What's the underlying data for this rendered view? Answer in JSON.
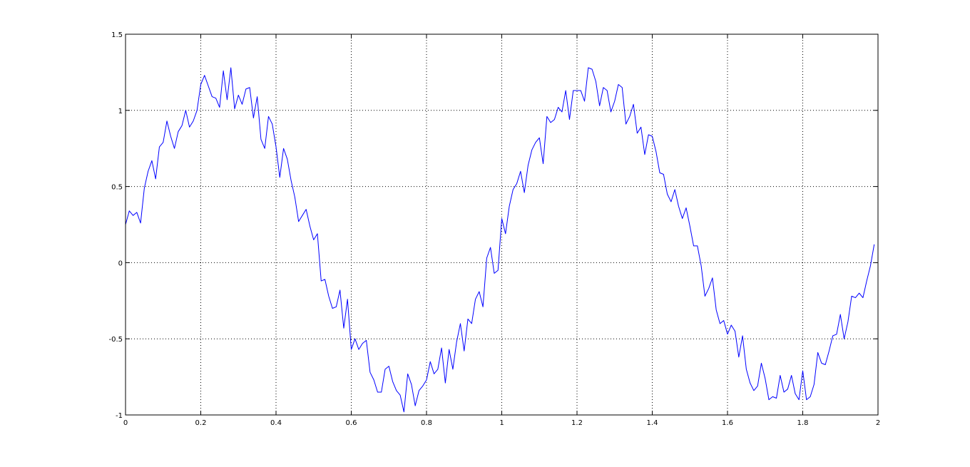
{
  "figure": {
    "background": "#ffffff",
    "axes_color": "#000000",
    "grid_color": "#000000",
    "line_color": "#0000ff"
  },
  "chart_data": {
    "type": "line",
    "title": "",
    "xlabel": "",
    "ylabel": "",
    "grid": true,
    "legend": "none",
    "xlim": [
      0,
      2
    ],
    "ylim": [
      -1,
      1.5
    ],
    "x_ticks": [
      0,
      0.2,
      0.4,
      0.6,
      0.8,
      1,
      1.2,
      1.4,
      1.6,
      1.8,
      2
    ],
    "x_tick_labels": [
      "0",
      "0.2",
      "0.4",
      "0.6",
      "0.8",
      "1",
      "1.2",
      "1.4",
      "1.6",
      "1.8",
      "2"
    ],
    "y_ticks": [
      -1,
      -0.5,
      0,
      0.5,
      1,
      1.5
    ],
    "y_tick_labels": [
      "-1",
      "-0.5",
      "0",
      "0.5",
      "1",
      "1.5"
    ],
    "series": [
      {
        "color": "#0000ff",
        "x": [
          0,
          0.01,
          0.02,
          0.03,
          0.04,
          0.05,
          0.06,
          0.07,
          0.08,
          0.09,
          0.1,
          0.11,
          0.12,
          0.13,
          0.14,
          0.15,
          0.16,
          0.17,
          0.18,
          0.19,
          0.2,
          0.21,
          0.22,
          0.23,
          0.24,
          0.25,
          0.26,
          0.27,
          0.28,
          0.29,
          0.3,
          0.31,
          0.32,
          0.33,
          0.34,
          0.35,
          0.36,
          0.37,
          0.38,
          0.39,
          0.4,
          0.41,
          0.42,
          0.43,
          0.44,
          0.45,
          0.46,
          0.47,
          0.48,
          0.49,
          0.5,
          0.51,
          0.52,
          0.53,
          0.54,
          0.55,
          0.56,
          0.57,
          0.58,
          0.59,
          0.6,
          0.61,
          0.62,
          0.63,
          0.64,
          0.65,
          0.66,
          0.67,
          0.68,
          0.69,
          0.7,
          0.71,
          0.72,
          0.73,
          0.74,
          0.75,
          0.76,
          0.77,
          0.78,
          0.79,
          0.8,
          0.81,
          0.82,
          0.83,
          0.84,
          0.85,
          0.86,
          0.87,
          0.88,
          0.89,
          0.9,
          0.91,
          0.92,
          0.93,
          0.94,
          0.95,
          0.96,
          0.97,
          0.98,
          0.99,
          1,
          1.01,
          1.02,
          1.03,
          1.04,
          1.05,
          1.06,
          1.07,
          1.08,
          1.09,
          1.1,
          1.11,
          1.12,
          1.13,
          1.14,
          1.15,
          1.16,
          1.17,
          1.18,
          1.19,
          1.2,
          1.21,
          1.22,
          1.23,
          1.24,
          1.25,
          1.26,
          1.27,
          1.28,
          1.29,
          1.3,
          1.31,
          1.32,
          1.33,
          1.34,
          1.35,
          1.36,
          1.37,
          1.38,
          1.39,
          1.4,
          1.41,
          1.42,
          1.43,
          1.44,
          1.45,
          1.46,
          1.47,
          1.48,
          1.49,
          1.5,
          1.51,
          1.52,
          1.53,
          1.54,
          1.55,
          1.56,
          1.57,
          1.58,
          1.59,
          1.6,
          1.61,
          1.62,
          1.63,
          1.64,
          1.65,
          1.66,
          1.67,
          1.68,
          1.69,
          1.7,
          1.71,
          1.72,
          1.73,
          1.74,
          1.75,
          1.76,
          1.77,
          1.78,
          1.79,
          1.8,
          1.81,
          1.82,
          1.83,
          1.84,
          1.85,
          1.86,
          1.87,
          1.88,
          1.89,
          1.9,
          1.91,
          1.92,
          1.93,
          1.94,
          1.95,
          1.96,
          1.97,
          1.98,
          1.99
        ],
        "y": [
          0.25,
          0.34,
          0.31,
          0.33,
          0.26,
          0.49,
          0.6,
          0.67,
          0.55,
          0.76,
          0.79,
          0.93,
          0.83,
          0.75,
          0.86,
          0.9,
          1.0,
          0.89,
          0.93,
          1.0,
          1.17,
          1.23,
          1.16,
          1.09,
          1.08,
          1.02,
          1.26,
          1.07,
          1.28,
          1.01,
          1.1,
          1.04,
          1.14,
          1.15,
          0.95,
          1.09,
          0.81,
          0.75,
          0.96,
          0.91,
          0.76,
          0.56,
          0.75,
          0.68,
          0.54,
          0.43,
          0.27,
          0.31,
          0.35,
          0.24,
          0.15,
          0.19,
          -0.12,
          -0.11,
          -0.22,
          -0.3,
          -0.29,
          -0.18,
          -0.43,
          -0.24,
          -0.57,
          -0.5,
          -0.57,
          -0.53,
          -0.51,
          -0.72,
          -0.77,
          -0.85,
          -0.85,
          -0.7,
          -0.68,
          -0.78,
          -0.84,
          -0.87,
          -0.98,
          -0.73,
          -0.8,
          -0.94,
          -0.84,
          -0.81,
          -0.77,
          -0.65,
          -0.73,
          -0.7,
          -0.56,
          -0.79,
          -0.57,
          -0.7,
          -0.52,
          -0.4,
          -0.58,
          -0.37,
          -0.4,
          -0.24,
          -0.19,
          -0.29,
          0.03,
          0.1,
          -0.07,
          -0.05,
          0.29,
          0.19,
          0.37,
          0.48,
          0.52,
          0.6,
          0.46,
          0.64,
          0.74,
          0.79,
          0.82,
          0.65,
          0.96,
          0.92,
          0.94,
          1.02,
          0.99,
          1.13,
          0.94,
          1.13,
          1.13,
          1.13,
          1.06,
          1.28,
          1.27,
          1.19,
          1.03,
          1.15,
          1.13,
          0.99,
          1.06,
          1.17,
          1.15,
          0.91,
          0.96,
          1.04,
          0.85,
          0.89,
          0.71,
          0.84,
          0.83,
          0.73,
          0.59,
          0.58,
          0.45,
          0.4,
          0.48,
          0.37,
          0.29,
          0.36,
          0.24,
          0.11,
          0.11,
          -0.02,
          -0.22,
          -0.17,
          -0.1,
          -0.31,
          -0.4,
          -0.38,
          -0.47,
          -0.41,
          -0.45,
          -0.62,
          -0.48,
          -0.7,
          -0.79,
          -0.84,
          -0.81,
          -0.66,
          -0.76,
          -0.9,
          -0.88,
          -0.89,
          -0.74,
          -0.85,
          -0.83,
          -0.74,
          -0.86,
          -0.9,
          -0.71,
          -0.9,
          -0.88,
          -0.8,
          -0.59,
          -0.66,
          -0.67,
          -0.58,
          -0.48,
          -0.47,
          -0.34,
          -0.5,
          -0.39,
          -0.22,
          -0.23,
          -0.2,
          -0.23,
          -0.12,
          -0.02,
          0.12
        ]
      }
    ]
  }
}
